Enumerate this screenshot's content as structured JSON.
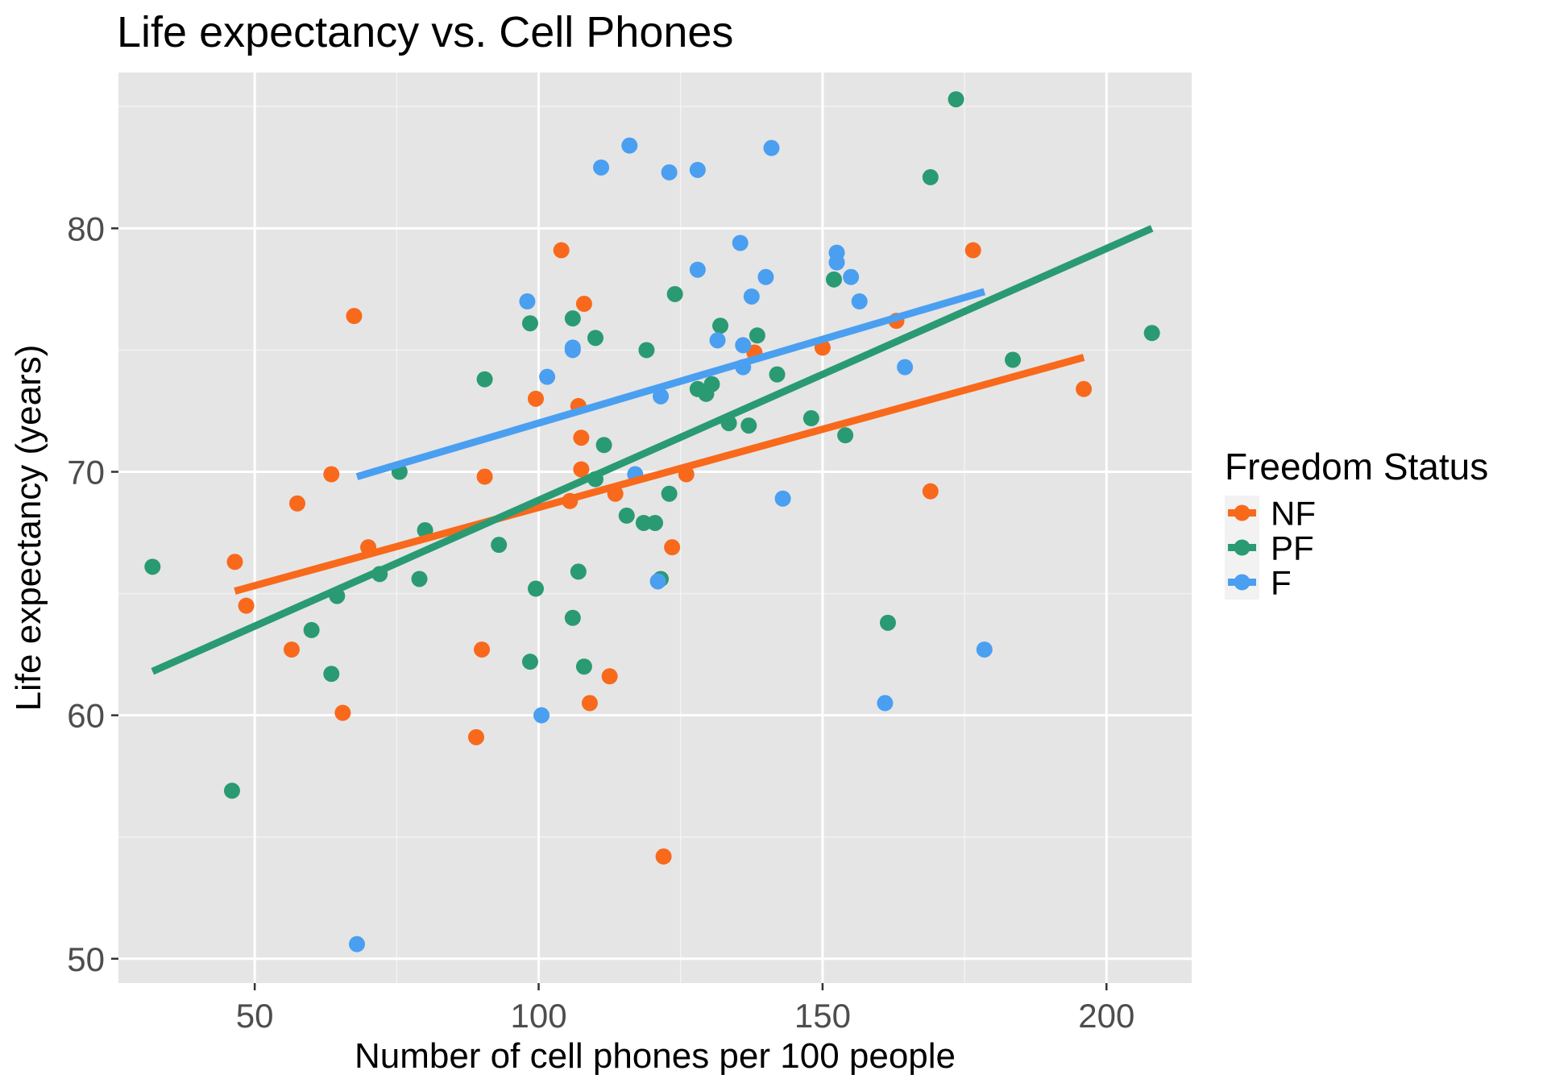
{
  "chart_data": {
    "type": "scatter",
    "title": "Life expectancy vs. Cell Phones",
    "xlabel": "Number of cell phones per 100 people",
    "ylabel": "Life expectancy (years)",
    "xlim": [
      26,
      215
    ],
    "ylim": [
      49,
      86.4
    ],
    "x_ticks": [
      50,
      100,
      150,
      200
    ],
    "y_ticks": [
      50,
      60,
      70,
      80
    ],
    "grid": true,
    "legend": {
      "title": "Freedom Status",
      "position": "right"
    },
    "series": [
      {
        "name": "NF",
        "color": "#F8691C",
        "points": [
          [
            46.5,
            66.3
          ],
          [
            48.5,
            64.5
          ],
          [
            56.5,
            62.7
          ],
          [
            57.5,
            68.7
          ],
          [
            63.5,
            69.9
          ],
          [
            65.5,
            60.1
          ],
          [
            67.5,
            76.4
          ],
          [
            70,
            66.9
          ],
          [
            89,
            59.1
          ],
          [
            90,
            62.7
          ],
          [
            90.5,
            69.8
          ],
          [
            99.5,
            73
          ],
          [
            104,
            79.1
          ],
          [
            105.5,
            68.8
          ],
          [
            107,
            72.7
          ],
          [
            107.5,
            71.4
          ],
          [
            107.5,
            70.1
          ],
          [
            108,
            76.9
          ],
          [
            109,
            60.5
          ],
          [
            112.5,
            61.6
          ],
          [
            113.5,
            69.1
          ],
          [
            122,
            54.2
          ],
          [
            123.5,
            66.9
          ],
          [
            126,
            69.9
          ],
          [
            138,
            74.9
          ],
          [
            150,
            75.1
          ],
          [
            163,
            76.2
          ],
          [
            169,
            69.2
          ],
          [
            176.5,
            79.1
          ],
          [
            196,
            73.4
          ]
        ],
        "trend": {
          "x": [
            46.5,
            196
          ],
          "y": [
            65.1,
            74.7
          ]
        }
      },
      {
        "name": "PF",
        "color": "#2A9A73",
        "points": [
          [
            32,
            66.1
          ],
          [
            46,
            56.9
          ],
          [
            60,
            63.5
          ],
          [
            63.5,
            61.7
          ],
          [
            64.5,
            64.9
          ],
          [
            72,
            65.8
          ],
          [
            75.5,
            70
          ],
          [
            79,
            65.6
          ],
          [
            80,
            67.6
          ],
          [
            90.5,
            73.8
          ],
          [
            93,
            67
          ],
          [
            98.5,
            62.2
          ],
          [
            98.5,
            76.1
          ],
          [
            99.5,
            65.2
          ],
          [
            106,
            76.3
          ],
          [
            106,
            64
          ],
          [
            107,
            65.9
          ],
          [
            108,
            62
          ],
          [
            110,
            75.5
          ],
          [
            110,
            69.7
          ],
          [
            111.5,
            71.1
          ],
          [
            115.5,
            68.2
          ],
          [
            118.5,
            67.9
          ],
          [
            119,
            75
          ],
          [
            120.5,
            67.9
          ],
          [
            121.5,
            65.6
          ],
          [
            123,
            69.1
          ],
          [
            124,
            77.3
          ],
          [
            128,
            73.4
          ],
          [
            129.5,
            73.2
          ],
          [
            130.5,
            73.6
          ],
          [
            132,
            76
          ],
          [
            133.5,
            72
          ],
          [
            137,
            71.9
          ],
          [
            138.5,
            75.6
          ],
          [
            142,
            74
          ],
          [
            148,
            72.2
          ],
          [
            152,
            77.9
          ],
          [
            154,
            71.5
          ],
          [
            161.5,
            63.8
          ],
          [
            169,
            82.1
          ],
          [
            173.5,
            85.3
          ],
          [
            183.5,
            74.6
          ],
          [
            208,
            75.7
          ]
        ],
        "trend": {
          "x": [
            32,
            208
          ],
          "y": [
            61.8,
            80
          ]
        }
      },
      {
        "name": "F",
        "color": "#4A9FF0",
        "points": [
          [
            68,
            50.6
          ],
          [
            98,
            77
          ],
          [
            100.5,
            60
          ],
          [
            101.5,
            73.9
          ],
          [
            106,
            75
          ],
          [
            106,
            75.1
          ],
          [
            111,
            82.5
          ],
          [
            116,
            83.4
          ],
          [
            117,
            69.9
          ],
          [
            121,
            65.5
          ],
          [
            121.5,
            73.1
          ],
          [
            123,
            82.3
          ],
          [
            128,
            78.3
          ],
          [
            128,
            82.4
          ],
          [
            131.5,
            75.4
          ],
          [
            135.5,
            79.4
          ],
          [
            136,
            75.2
          ],
          [
            136,
            74.3
          ],
          [
            137.5,
            77.2
          ],
          [
            140,
            78
          ],
          [
            141,
            83.3
          ],
          [
            143,
            68.9
          ],
          [
            152.5,
            79
          ],
          [
            152.5,
            78.6
          ],
          [
            155,
            78
          ],
          [
            156.5,
            77
          ],
          [
            161,
            60.5
          ],
          [
            164.5,
            74.3
          ],
          [
            178.5,
            62.7
          ]
        ],
        "trend": {
          "x": [
            68,
            178.5
          ],
          "y": [
            69.8,
            77.4
          ]
        }
      }
    ]
  }
}
